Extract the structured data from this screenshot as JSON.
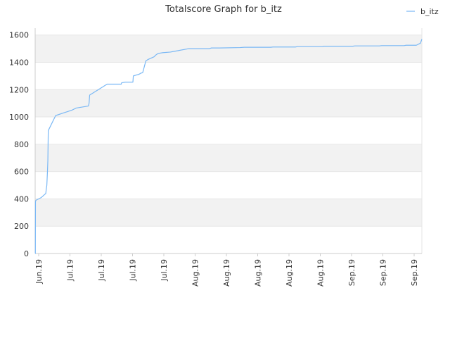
{
  "chart_data": {
    "type": "line",
    "title": "Totalscore Graph for b_itz",
    "xlabel": "",
    "ylabel": "",
    "ylim": [
      0,
      1650
    ],
    "y_ticks": [
      0,
      200,
      400,
      600,
      800,
      1000,
      1200,
      1400,
      1600
    ],
    "x_tick_labels": [
      "Jun.19",
      "Jul.19",
      "Jul.19",
      "Jul.19",
      "Jul.19",
      "Aug.19",
      "Aug.19",
      "Aug.19",
      "Aug.19",
      "Aug.19",
      "Sep.19",
      "Sep.19",
      "Sep.19"
    ],
    "legend": {
      "position": "top-right"
    },
    "grid": true,
    "colors": {
      "line": "#7ab8f5",
      "band": "#f2f2f2",
      "grid": "#e6e6e6"
    },
    "series": [
      {
        "name": "b_itz",
        "x": [
          0,
          0.1,
          0.15,
          0.4,
          3.0,
          5.2,
          5.4,
          5.7,
          6.0,
          6.2,
          6.4,
          10,
          14,
          16,
          18,
          20,
          26,
          26.3,
          26.6,
          35.1,
          35.3,
          42,
          42.2,
          44,
          47.7,
          47.9,
          50,
          50.3,
          51,
          51.5,
          52.5,
          54,
          55,
          58,
          59,
          60,
          62,
          66,
          67,
          75,
          76,
          85,
          86,
          90,
          100,
          102,
          115,
          116,
          120,
          127,
          128,
          133,
          140,
          141,
          150,
          155,
          156,
          160,
          168,
          169,
          175,
          180,
          181,
          186,
          188,
          188.7
        ],
        "y": [
          0,
          0,
          380,
          390,
          410,
          440,
          470,
          500,
          600,
          680,
          900,
          1010,
          1030,
          1040,
          1050,
          1065,
          1080,
          1100,
          1160,
          1240,
          1240,
          1240,
          1250,
          1255,
          1255,
          1300,
          1310,
          1310,
          1315,
          1320,
          1325,
          1410,
          1420,
          1440,
          1455,
          1465,
          1470,
          1475,
          1478,
          1500,
          1500,
          1500,
          1505,
          1505,
          1508,
          1510,
          1510,
          1512,
          1512,
          1512,
          1515,
          1515,
          1515,
          1518,
          1518,
          1518,
          1520,
          1520,
          1520,
          1522,
          1522,
          1522,
          1525,
          1525,
          1540,
          1570
        ]
      }
    ]
  }
}
